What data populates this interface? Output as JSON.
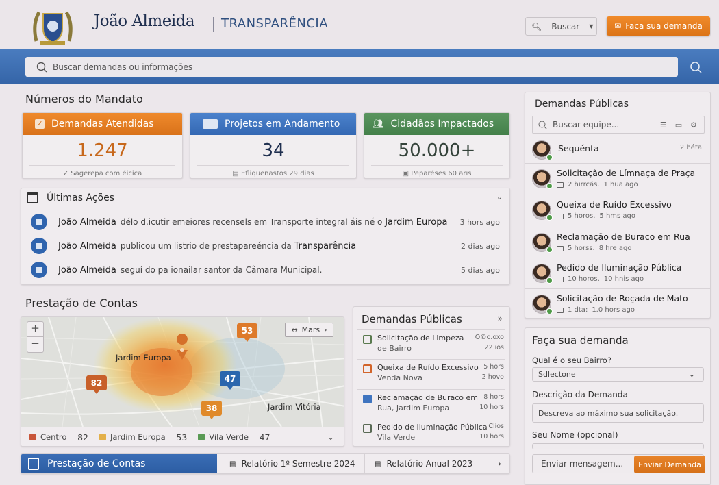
{
  "header": {
    "name": "João Almeida",
    "subtitle": "TRANSPARÊNCIA",
    "search_button": "Buscar",
    "cta_button": "Faca sua demanda"
  },
  "search": {
    "placeholder": "Buscar demandas ou informações"
  },
  "mandato": {
    "title": "Números do Mandato",
    "cards": [
      {
        "label": "Demandas Atendidas",
        "value": "1.247",
        "footer": "Sagerepa com éicica",
        "color": "#e5801f"
      },
      {
        "label": "Projetos em Andamento",
        "value": "34",
        "footer": "Efliquenastos 29 dias",
        "color": "#3f74bf"
      },
      {
        "label": "Cidadãos Impactados",
        "value": "50.000+",
        "footer": "Peparéses 60 arıs",
        "color": "#4f8a55"
      }
    ]
  },
  "acoes": {
    "title": "Últimas Ações",
    "items": [
      {
        "name": "João Almeida",
        "text": "délo d.icutir emeiores recensels em Transporte integral áis né o",
        "place": "Jardim Europa",
        "time": "3 hors ago"
      },
      {
        "name": "João Almeida",
        "text": "publicou um listrio de prestapareéncia da",
        "place": "Transparência",
        "time": "2 dias ago"
      },
      {
        "name": "João Almeida",
        "text": "seguí do pa ionailar santor da Câmara Municipal.",
        "place": "",
        "time": "5 dias ago"
      }
    ]
  },
  "contas": {
    "title": "Prestação de Contas",
    "map": {
      "label_1": "Jardim Europa",
      "label_2": "Jardim Vitória",
      "layer_button": "Mars",
      "markers": [
        "53",
        "82",
        "47",
        "38"
      ],
      "legend": [
        {
          "name": "Centro",
          "value": "82",
          "color": "#c8553a"
        },
        {
          "name": "Jardim Europa",
          "value": "53",
          "color": "#e3b04a"
        },
        {
          "name": "Vila Verde",
          "value": "47",
          "color": "#5a9a55"
        }
      ]
    }
  },
  "demandas_mid": {
    "title": "Demandas Públicas",
    "items": [
      {
        "l1": "Solicitação de Limpeza",
        "l2": "de Bairro",
        "t1": "O©o.oxo",
        "t2": "22 ıos",
        "color": "#5a7a4f"
      },
      {
        "l1": "Queixa de Ruído Excessivo",
        "l2": "Venda Nova",
        "t1": "5 hors",
        "t2": "2 hovo",
        "color": "#d2642a"
      },
      {
        "l1": "Reclamação de Buraco em",
        "l2": "Rua, Jardim Europa",
        "t1": "8 hors",
        "t2": "10 hors",
        "color": "#3f74bf"
      },
      {
        "l1": "Pedido de Iluminação Pública",
        "l2": "Vila Verde",
        "t1": "Clios",
        "t2": "10 hors",
        "color": "#5a6a55"
      }
    ]
  },
  "bottom_bar": {
    "title": "Prestação de Contas",
    "link_1": "Relatório 1º Semestre 2024",
    "link_2": "Relatório Anual 2023"
  },
  "right_panel": {
    "title": "Demandas Públicas",
    "search_placeholder": "Buscar equipe...",
    "first": {
      "name": "Sequénta",
      "time": "2 héta"
    },
    "items": [
      {
        "title": "Solicitação de Límnaça de Praça",
        "meta1": "2 hırrcás.",
        "meta2": "1 hua ago"
      },
      {
        "title": "Queixa de Ruído Excessivo",
        "meta1": "5 horos.",
        "meta2": "5 hms ago"
      },
      {
        "title": "Reclamação de Buraco em Rua",
        "meta1": "5 horss.",
        "meta2": "8 hre ago"
      },
      {
        "title": "Pedido de Iluminação Pública",
        "meta1": "10 horos.",
        "meta2": "10 hnis ago"
      },
      {
        "title": "Solicitação de Roçada de Mato",
        "meta1": "1 dta:",
        "meta2": "1.0 hors ago"
      }
    ]
  },
  "form": {
    "title": "Faça sua demanda",
    "bairro_label": "Qual é o seu Bairro?",
    "bairro_value": "Sdlectone",
    "desc_label": "Descrição da Demanda",
    "desc_placeholder": "Descreva ao máximo sua solicitação.",
    "name_label": "Seu Nome (opcional)",
    "message_placeholder": "Enviar mensagem...",
    "submit": "Enviar Demanda"
  }
}
